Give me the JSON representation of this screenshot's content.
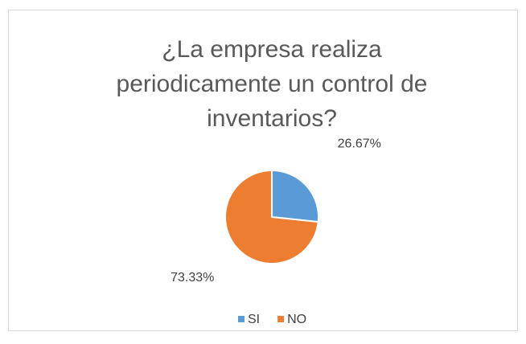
{
  "chart_data": {
    "type": "pie",
    "title": "¿La empresa realiza periodicamente un control de inventarios?",
    "categories": [
      "SI",
      "NO"
    ],
    "values": [
      26.67,
      73.33
    ],
    "value_labels": [
      "26.67%",
      "73.33%"
    ],
    "colors": [
      "#5b9bd5",
      "#ed7d31"
    ],
    "legend": "bottom"
  }
}
